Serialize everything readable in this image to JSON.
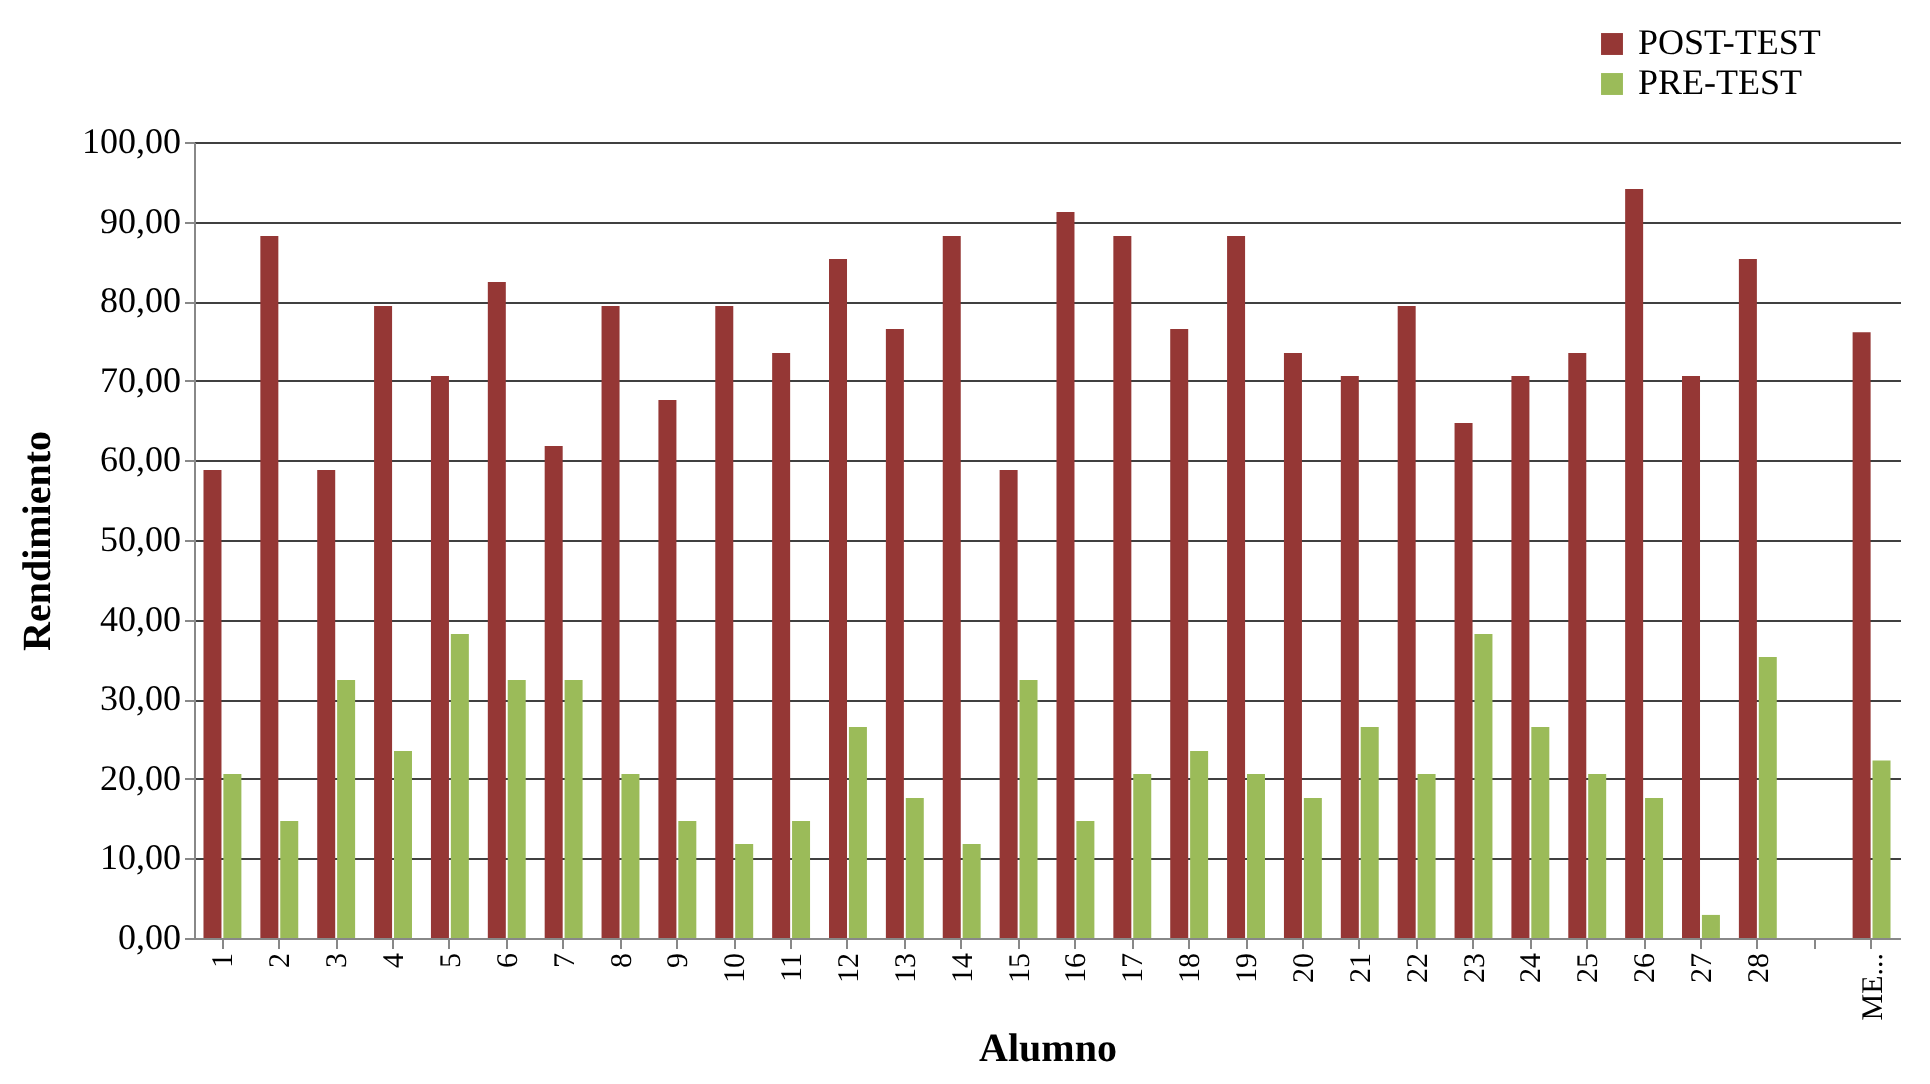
{
  "chart_data": {
    "type": "bar",
    "xlabel": "Alumno",
    "ylabel": "Rendimiento",
    "categories": [
      "1",
      "2",
      "3",
      "4",
      "5",
      "6",
      "7",
      "8",
      "9",
      "10",
      "11",
      "12",
      "13",
      "14",
      "15",
      "16",
      "17",
      "18",
      "19",
      "20",
      "21",
      "22",
      "23",
      "24",
      "25",
      "26",
      "27",
      "28",
      null,
      "ME..."
    ],
    "series": [
      {
        "name": "POST-TEST",
        "color": "#953735",
        "values": [
          58.8,
          88.2,
          58.8,
          79.4,
          70.6,
          82.4,
          61.8,
          79.4,
          67.6,
          79.4,
          73.5,
          85.3,
          76.5,
          88.2,
          58.8,
          91.2,
          88.2,
          76.5,
          88.2,
          73.5,
          70.6,
          79.4,
          64.7,
          70.6,
          73.5,
          94.1,
          70.6,
          85.3,
          null,
          76.1
        ]
      },
      {
        "name": "PRE-TEST",
        "color": "#9bbb59",
        "values": [
          20.6,
          14.7,
          32.4,
          23.5,
          38.2,
          32.4,
          32.4,
          20.6,
          14.7,
          11.8,
          14.7,
          26.5,
          17.6,
          11.8,
          32.4,
          14.7,
          20.6,
          23.5,
          20.6,
          17.6,
          26.5,
          20.6,
          38.2,
          26.5,
          20.6,
          17.6,
          2.9,
          35.3,
          null,
          22.3
        ]
      }
    ],
    "ylim": [
      0,
      100
    ],
    "yticks": [
      {
        "value": 0,
        "label": "0,00"
      },
      {
        "value": 10,
        "label": "10,00"
      },
      {
        "value": 20,
        "label": "20,00"
      },
      {
        "value": 30,
        "label": "30,00"
      },
      {
        "value": 40,
        "label": "40,00"
      },
      {
        "value": 50,
        "label": "50,00"
      },
      {
        "value": 60,
        "label": "60,00"
      },
      {
        "value": 70,
        "label": "70,00"
      },
      {
        "value": 80,
        "label": "80,00"
      },
      {
        "value": 90,
        "label": "90,00"
      },
      {
        "value": 100,
        "label": "100,00"
      }
    ],
    "grid": "y",
    "legend": "top right"
  }
}
